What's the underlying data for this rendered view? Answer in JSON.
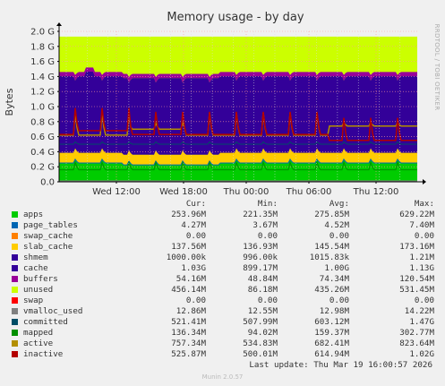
{
  "chart_data": {
    "type": "area",
    "title": "Memory usage - by day",
    "ylabel": "Bytes",
    "side_label": "RRDTOOL / TOBI OETIKER",
    "ylim": [
      0,
      2.0
    ],
    "y_unit": "G",
    "y_ticks": [
      "0.0",
      "0.2 G",
      "0.4 G",
      "0.6 G",
      "0.8 G",
      "1.0 G",
      "1.2 G",
      "1.4 G",
      "1.6 G",
      "1.8 G",
      "2.0 G"
    ],
    "x_ticks": [
      "Wed 12:00",
      "Wed 18:00",
      "Thu 00:00",
      "Thu 06:00",
      "Thu 12:00"
    ],
    "grid": true,
    "columns": [
      "Cur:",
      "Min:",
      "Avg:",
      "Max:"
    ],
    "series": [
      {
        "name": "apps",
        "color": "#00cc00",
        "cur": "253.96M",
        "min": "221.35M",
        "avg": "275.85M",
        "max": "629.22M"
      },
      {
        "name": "page_tables",
        "color": "#0066b3",
        "cur": "4.27M",
        "min": "3.67M",
        "avg": "4.52M",
        "max": "7.40M"
      },
      {
        "name": "swap_cache",
        "color": "#ff8000",
        "cur": "0.00",
        "min": "0.00",
        "avg": "0.00",
        "max": "0.00"
      },
      {
        "name": "slab_cache",
        "color": "#ffcc00",
        "cur": "137.56M",
        "min": "136.93M",
        "avg": "145.54M",
        "max": "173.16M"
      },
      {
        "name": "shmem",
        "color": "#330099",
        "cur": "1000.00k",
        "min": "996.00k",
        "avg": "1015.83k",
        "max": "1.21M"
      },
      {
        "name": "cache",
        "color": "#330099",
        "cur": "1.03G",
        "min": "899.17M",
        "avg": "1.00G",
        "max": "1.13G"
      },
      {
        "name": "buffers",
        "color": "#990099",
        "cur": "54.16M",
        "min": "48.84M",
        "avg": "74.34M",
        "max": "120.54M"
      },
      {
        "name": "unused",
        "color": "#ccff00",
        "cur": "456.14M",
        "min": "86.18M",
        "avg": "435.26M",
        "max": "531.45M"
      },
      {
        "name": "swap",
        "color": "#ff0000",
        "cur": "0.00",
        "min": "0.00",
        "avg": "0.00",
        "max": "0.00"
      },
      {
        "name": "vmalloc_used",
        "color": "#808080",
        "cur": "12.86M",
        "min": "12.55M",
        "avg": "12.98M",
        "max": "14.22M"
      },
      {
        "name": "committed",
        "color": "#004d66",
        "cur": "521.41M",
        "min": "507.99M",
        "avg": "603.12M",
        "max": "1.47G"
      },
      {
        "name": "mapped",
        "color": "#008f00",
        "cur": "136.34M",
        "min": "94.02M",
        "avg": "159.37M",
        "max": "302.77M"
      },
      {
        "name": "active",
        "color": "#b38f00",
        "cur": "757.34M",
        "min": "534.83M",
        "avg": "682.41M",
        "max": "823.64M"
      },
      {
        "name": "inactive",
        "color": "#b30000",
        "cur": "525.87M",
        "min": "500.01M",
        "avg": "614.94M",
        "max": "1.02G"
      }
    ]
  },
  "footer": {
    "last_update": "Last update: Thu Mar 19 16:00:57 2026",
    "munin": "Munin 2.0.57"
  }
}
